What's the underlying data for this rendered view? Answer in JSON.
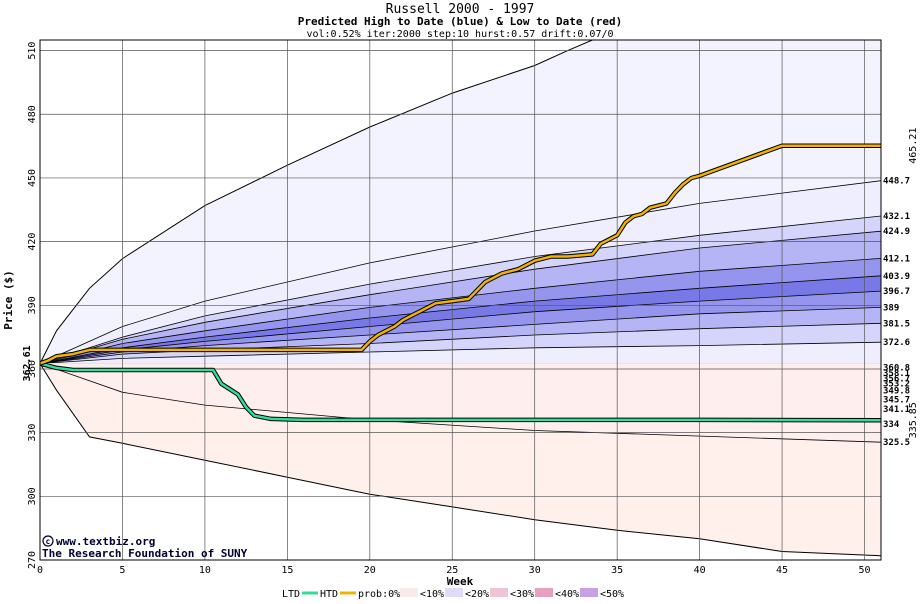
{
  "chart_data": {
    "type": "area",
    "title": "Russell 2000 - 1997",
    "subtitle": "Predicted High to Date (blue) &  Low to Date (red)",
    "params": "vol:0.52% iter:2000 step:10 hurst:0.57 drift:0.07/0",
    "xlabel": "Week",
    "ylabel": "Price ($)",
    "xlim": [
      0,
      51
    ],
    "ylim": [
      270,
      515
    ],
    "x_ticks": [
      0,
      5,
      10,
      15,
      20,
      25,
      30,
      35,
      40,
      45,
      50
    ],
    "y_ticks": [
      270,
      300,
      330,
      360,
      390,
      420,
      450,
      480,
      510
    ],
    "start_label": "362.61",
    "start_value": 362.61,
    "htd_final_label": "465.21",
    "ltd_final_label": "335.85",
    "credits": [
      "www.textbiz.org",
      "The Research Foundation of SUNY"
    ],
    "high_levels": [
      {
        "label": "448.7",
        "value": 448.7
      },
      {
        "label": "432.1",
        "value": 432.1
      },
      {
        "label": "424.9",
        "value": 424.9
      },
      {
        "label": "412.1",
        "value": 412.1
      },
      {
        "label": "403.9",
        "value": 403.9
      },
      {
        "label": "396.7",
        "value": 396.7
      },
      {
        "label": "389",
        "value": 389
      },
      {
        "label": "381.5",
        "value": 381.5
      },
      {
        "label": "372.6",
        "value": 372.6
      }
    ],
    "low_levels": [
      {
        "label": "360.8",
        "value": 360.8
      },
      {
        "label": "358.1",
        "value": 358.1
      },
      {
        "label": "356.7",
        "value": 356.7
      },
      {
        "label": "353.2",
        "value": 353.2
      },
      {
        "label": "349.8",
        "value": 349.8
      },
      {
        "label": "345.7",
        "value": 345.7
      },
      {
        "label": "341.1",
        "value": 341.1
      },
      {
        "label": "334",
        "value": 334
      },
      {
        "label": "325.5",
        "value": 325.5
      }
    ],
    "envelope_top": [
      [
        0,
        362.6
      ],
      [
        1,
        378
      ],
      [
        3,
        398
      ],
      [
        5,
        412
      ],
      [
        10,
        437
      ],
      [
        15,
        456
      ],
      [
        20,
        474
      ],
      [
        25,
        490
      ],
      [
        30,
        503
      ],
      [
        32,
        510
      ],
      [
        33.5,
        515
      ]
    ],
    "envelope_bottom": [
      [
        0,
        362.6
      ],
      [
        1,
        350
      ],
      [
        3,
        328
      ],
      [
        5,
        325
      ],
      [
        10,
        317
      ],
      [
        15,
        309
      ],
      [
        20,
        301
      ],
      [
        25,
        295
      ],
      [
        30,
        289
      ],
      [
        35,
        284
      ],
      [
        40,
        280
      ],
      [
        45,
        274
      ],
      [
        51,
        272
      ]
    ],
    "htd": [
      [
        0,
        362.6
      ],
      [
        0.5,
        364
      ],
      [
        1,
        366
      ],
      [
        2,
        367
      ],
      [
        3,
        369
      ],
      [
        5,
        369
      ],
      [
        10,
        369
      ],
      [
        15,
        369
      ],
      [
        19.5,
        369
      ],
      [
        20,
        373
      ],
      [
        20.5,
        376
      ],
      [
        21.5,
        380
      ],
      [
        22,
        383
      ],
      [
        22.5,
        385
      ],
      [
        23,
        387
      ],
      [
        24,
        391
      ],
      [
        25,
        392
      ],
      [
        26,
        393
      ],
      [
        26.5,
        397
      ],
      [
        27,
        401
      ],
      [
        28,
        405
      ],
      [
        29,
        407
      ],
      [
        30,
        411
      ],
      [
        31,
        413
      ],
      [
        32,
        413
      ],
      [
        33.5,
        414
      ],
      [
        34,
        419
      ],
      [
        35,
        423
      ],
      [
        35.5,
        429
      ],
      [
        36,
        432
      ],
      [
        36.5,
        433
      ],
      [
        37,
        436
      ],
      [
        38,
        438
      ],
      [
        38.5,
        443
      ],
      [
        39,
        447
      ],
      [
        39.5,
        450
      ],
      [
        40,
        451
      ],
      [
        45,
        465.21
      ],
      [
        51,
        465.21
      ]
    ],
    "ltd": [
      [
        0,
        362.6
      ],
      [
        1,
        360.5
      ],
      [
        2,
        359.5
      ],
      [
        3,
        359.5
      ],
      [
        10.5,
        359.5
      ],
      [
        11,
        353
      ],
      [
        12,
        348
      ],
      [
        12.5,
        342
      ],
      [
        13,
        338
      ],
      [
        14,
        336.5
      ],
      [
        16,
        336
      ],
      [
        25,
        336
      ],
      [
        40,
        336
      ],
      [
        51,
        335.85
      ]
    ],
    "high_bands": [
      {
        "prob": "<10%",
        "color": "#eeeeff",
        "upper": [
          [
            0,
            362.6
          ],
          [
            5,
            380
          ],
          [
            10,
            392
          ],
          [
            20,
            410
          ],
          [
            30,
            425
          ],
          [
            40,
            438
          ],
          [
            51,
            448.7
          ]
        ]
      },
      {
        "prob": "<20%",
        "color": "#d5d5fb",
        "upper": [
          [
            0,
            362.6
          ],
          [
            5,
            375
          ],
          [
            10,
            385
          ],
          [
            20,
            400
          ],
          [
            30,
            413
          ],
          [
            40,
            423
          ],
          [
            51,
            432.1
          ]
        ]
      },
      {
        "prob": "<30%",
        "color": "#b5b5f5",
        "upper": [
          [
            0,
            362.6
          ],
          [
            5,
            374
          ],
          [
            10,
            382
          ],
          [
            20,
            395
          ],
          [
            30,
            407
          ],
          [
            40,
            417
          ],
          [
            51,
            424.9
          ]
        ]
      },
      {
        "prob": "<40%",
        "color": "#9595ee",
        "upper": [
          [
            0,
            362.6
          ],
          [
            5,
            372
          ],
          [
            10,
            378
          ],
          [
            20,
            389
          ],
          [
            30,
            398
          ],
          [
            40,
            406
          ],
          [
            51,
            412.1
          ]
        ]
      },
      {
        "prob": "<50%",
        "color": "#7878e6",
        "upper": [
          [
            0,
            362.6
          ],
          [
            5,
            370
          ],
          [
            10,
            375
          ],
          [
            20,
            384
          ],
          [
            30,
            392
          ],
          [
            40,
            398
          ],
          [
            51,
            403.9
          ]
        ]
      },
      {
        "prob": "<40%",
        "color": "#9595ee",
        "upper": [
          [
            0,
            362.6
          ],
          [
            5,
            369
          ],
          [
            10,
            373
          ],
          [
            20,
            380
          ],
          [
            30,
            387
          ],
          [
            40,
            392
          ],
          [
            51,
            396.7
          ]
        ]
      },
      {
        "prob": "<30%",
        "color": "#b5b5f5",
        "upper": [
          [
            0,
            362.6
          ],
          [
            5,
            368
          ],
          [
            10,
            371
          ],
          [
            20,
            376
          ],
          [
            30,
            381
          ],
          [
            40,
            386
          ],
          [
            51,
            389
          ]
        ]
      },
      {
        "prob": "<20%",
        "color": "#d5d5fb",
        "upper": [
          [
            0,
            362.6
          ],
          [
            5,
            367
          ],
          [
            10,
            369
          ],
          [
            20,
            372
          ],
          [
            30,
            376
          ],
          [
            40,
            379
          ],
          [
            51,
            381.5
          ]
        ]
      },
      {
        "prob": "<10%",
        "color": "#eeeeff",
        "upper": [
          [
            0,
            362.6
          ],
          [
            5,
            365
          ],
          [
            10,
            366
          ],
          [
            20,
            368
          ],
          [
            30,
            370
          ],
          [
            40,
            371
          ],
          [
            51,
            372.6
          ]
        ]
      }
    ],
    "low_bands": [
      {
        "prob": "<10%",
        "color": "#ffeeee",
        "lower": [
          [
            0,
            362.6
          ],
          [
            5,
            361.5
          ],
          [
            10,
            361.3
          ],
          [
            20,
            361
          ],
          [
            30,
            360.9
          ],
          [
            51,
            360.8
          ]
        ]
      },
      {
        "prob": "<20%",
        "color": "#fbd5d5",
        "lower": [
          [
            0,
            362.6
          ],
          [
            5,
            360.5
          ],
          [
            10,
            360
          ],
          [
            20,
            359
          ],
          [
            30,
            358.6
          ],
          [
            51,
            358.1
          ]
        ]
      },
      {
        "prob": "<30%",
        "color": "#f5b5b5",
        "lower": [
          [
            0,
            362.6
          ],
          [
            5,
            360
          ],
          [
            10,
            359
          ],
          [
            20,
            358
          ],
          [
            30,
            357.3
          ],
          [
            51,
            356.7
          ]
        ]
      },
      {
        "prob": "<40%",
        "color": "#ee9595",
        "lower": [
          [
            0,
            362.6
          ],
          [
            5,
            359
          ],
          [
            10,
            358
          ],
          [
            20,
            356
          ],
          [
            30,
            354.5
          ],
          [
            51,
            353.2
          ]
        ]
      },
      {
        "prob": "<50%",
        "color": "#e67878",
        "lower": [
          [
            0,
            362.6
          ],
          [
            5,
            358
          ],
          [
            10,
            356
          ],
          [
            20,
            353.5
          ],
          [
            30,
            351.8
          ],
          [
            51,
            349.8
          ]
        ]
      },
      {
        "prob": "<40%",
        "color": "#ee9595",
        "lower": [
          [
            0,
            362.6
          ],
          [
            5,
            357
          ],
          [
            10,
            354
          ],
          [
            20,
            351
          ],
          [
            30,
            348.5
          ],
          [
            51,
            345.7
          ]
        ]
      },
      {
        "prob": "<30%",
        "color": "#f5b5b5",
        "lower": [
          [
            0,
            362.6
          ],
          [
            5,
            355.5
          ],
          [
            10,
            352
          ],
          [
            20,
            348
          ],
          [
            30,
            345
          ],
          [
            51,
            341.1
          ]
        ]
      },
      {
        "prob": "<20%",
        "color": "#fbd5d5",
        "lower": [
          [
            0,
            362.6
          ],
          [
            5,
            353
          ],
          [
            10,
            348
          ],
          [
            20,
            343
          ],
          [
            30,
            339
          ],
          [
            51,
            334
          ]
        ]
      },
      {
        "prob": "<10%",
        "color": "#ffeeee",
        "lower": [
          [
            0,
            362.6
          ],
          [
            5,
            349
          ],
          [
            10,
            343
          ],
          [
            20,
            336
          ],
          [
            30,
            331
          ],
          [
            51,
            325.5
          ]
        ]
      }
    ],
    "legend": {
      "ltd_label": "LTD",
      "htd_label": "HTD",
      "prob_prefix": "prob:0%",
      "items": [
        "<10%",
        "<20%",
        "<30%",
        "<40%",
        "<50%"
      ]
    },
    "colors": {
      "htd": "#f0b400",
      "ltd": "#33dd99",
      "envelope_blue": "#f3f3ff",
      "envelope_red": "#fff0ec",
      "high_value_text": "#a07000",
      "low_value_text": "#009966",
      "legend_swatches": [
        "#fbeaea",
        "#e0dcf8",
        "#f0c4d8",
        "#e8a0c0",
        "#c8a0e8"
      ]
    }
  }
}
